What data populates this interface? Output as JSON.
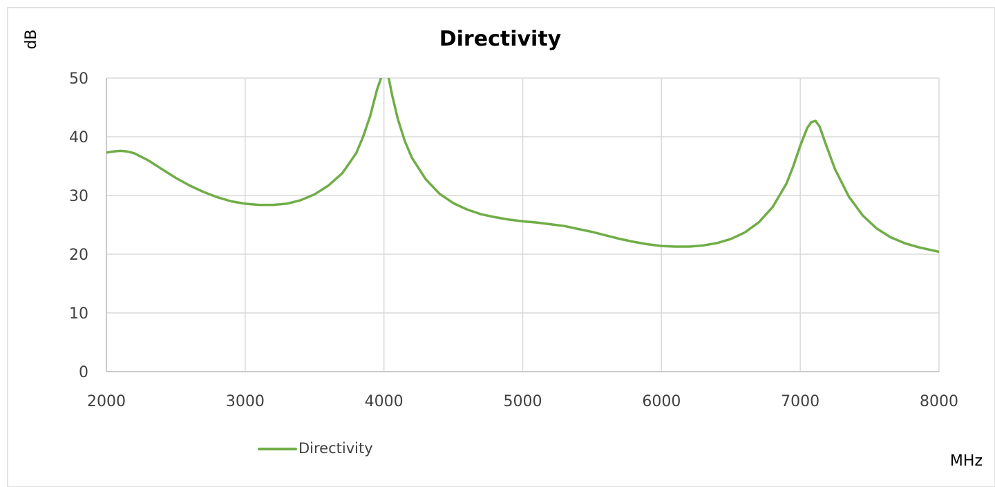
{
  "chart_data": {
    "type": "line",
    "title": "Directivity",
    "xlabel": "MHz",
    "ylabel": "dB",
    "xlim": [
      2000,
      8000
    ],
    "ylim": [
      0,
      50
    ],
    "x_ticks": [
      2000,
      3000,
      4000,
      5000,
      6000,
      7000,
      8000
    ],
    "y_ticks": [
      0,
      10,
      20,
      30,
      40,
      50
    ],
    "grid": true,
    "legend_position": "bottom-left",
    "series": [
      {
        "name": "Directivity",
        "color": "#70ad47",
        "x": [
          2000,
          2050,
          2100,
          2150,
          2200,
          2300,
          2400,
          2500,
          2600,
          2700,
          2800,
          2900,
          3000,
          3100,
          3200,
          3300,
          3400,
          3500,
          3600,
          3700,
          3800,
          3850,
          3900,
          3950,
          4000,
          4030,
          4060,
          4100,
          4150,
          4200,
          4300,
          4400,
          4500,
          4600,
          4700,
          4800,
          4900,
          5000,
          5100,
          5200,
          5300,
          5400,
          5500,
          5600,
          5700,
          5800,
          5900,
          6000,
          6100,
          6200,
          6300,
          6400,
          6500,
          6600,
          6700,
          6800,
          6900,
          6950,
          7000,
          7050,
          7080,
          7110,
          7140,
          7180,
          7250,
          7350,
          7450,
          7550,
          7650,
          7750,
          7850,
          8000
        ],
        "y": [
          37.3,
          37.5,
          37.6,
          37.5,
          37.2,
          36.0,
          34.5,
          33.0,
          31.7,
          30.6,
          29.7,
          29.0,
          28.6,
          28.4,
          28.4,
          28.6,
          29.2,
          30.2,
          31.7,
          33.8,
          37.2,
          40.0,
          43.5,
          48.0,
          51.5,
          50.5,
          47.0,
          43.0,
          39.3,
          36.5,
          32.8,
          30.3,
          28.7,
          27.6,
          26.8,
          26.3,
          25.9,
          25.6,
          25.4,
          25.1,
          24.8,
          24.3,
          23.8,
          23.2,
          22.6,
          22.1,
          21.7,
          21.4,
          21.3,
          21.3,
          21.5,
          21.9,
          22.6,
          23.7,
          25.4,
          28.0,
          32.0,
          35.0,
          38.5,
          41.5,
          42.5,
          42.7,
          41.7,
          39.0,
          34.5,
          29.8,
          26.6,
          24.4,
          22.9,
          21.9,
          21.2,
          20.4
        ]
      }
    ]
  }
}
